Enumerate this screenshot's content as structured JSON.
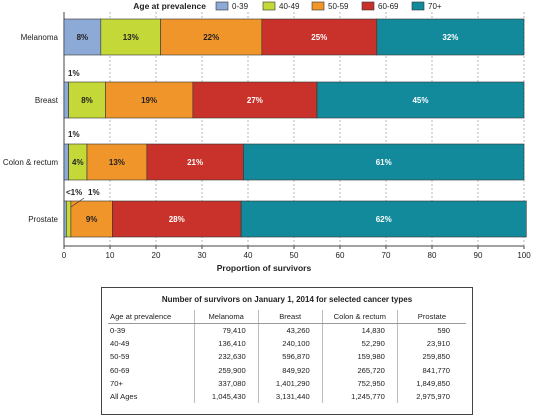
{
  "chart_data": {
    "type": "bar",
    "orientation": "horizontal",
    "stacked": true,
    "categories": [
      "Melanoma",
      "Breast",
      "Colon & rectum",
      "Prostate"
    ],
    "series": [
      {
        "name": "0-39",
        "color": "#8da9d6",
        "values": [
          8,
          1,
          1,
          0.5
        ]
      },
      {
        "name": "40-49",
        "color": "#c4d838",
        "values": [
          13,
          8,
          4,
          1
        ]
      },
      {
        "name": "50-59",
        "color": "#f0952a",
        "values": [
          22,
          19,
          13,
          9
        ]
      },
      {
        "name": "60-69",
        "color": "#c8322a",
        "values": [
          25,
          27,
          21,
          28
        ]
      },
      {
        "name": "70+",
        "color": "#128a9c",
        "values": [
          32,
          45,
          61,
          62
        ]
      }
    ],
    "labels": [
      [
        "8%",
        "13%",
        "22%",
        "25%",
        "32%"
      ],
      [
        "1%",
        "8%",
        "19%",
        "27%",
        "45%"
      ],
      [
        "1%",
        "4%",
        "13%",
        "21%",
        "61%"
      ],
      [
        "<1%",
        "1%",
        "9%",
        "28%",
        "62%"
      ]
    ],
    "legend_title": "Age at prevalence",
    "legend_position": "top",
    "xlabel": "Proportion of survivors",
    "xlim": [
      0,
      100
    ],
    "xticks": [
      0,
      10,
      20,
      30,
      40,
      50,
      60,
      70,
      80,
      90,
      100
    ],
    "grid": true
  },
  "table": {
    "title": "Number of survivors on January 1, 2014 for selected cancer types",
    "columns": [
      "Age at prevalence",
      "Melanoma",
      "Breast",
      "Colon & rectum",
      "Prostate"
    ],
    "rows": [
      [
        "0-39",
        "79,410",
        "43,260",
        "14,830",
        "590"
      ],
      [
        "40-49",
        "136,410",
        "240,100",
        "52,290",
        "23,910"
      ],
      [
        "50-59",
        "232,630",
        "596,870",
        "159,980",
        "259,850"
      ],
      [
        "60-69",
        "259,900",
        "849,920",
        "265,720",
        "841,770"
      ],
      [
        "70+",
        "337,080",
        "1,401,290",
        "752,950",
        "1,849,850"
      ],
      [
        "All Ages",
        "1,045,430",
        "3,131,440",
        "1,245,770",
        "2,975,970"
      ]
    ]
  }
}
